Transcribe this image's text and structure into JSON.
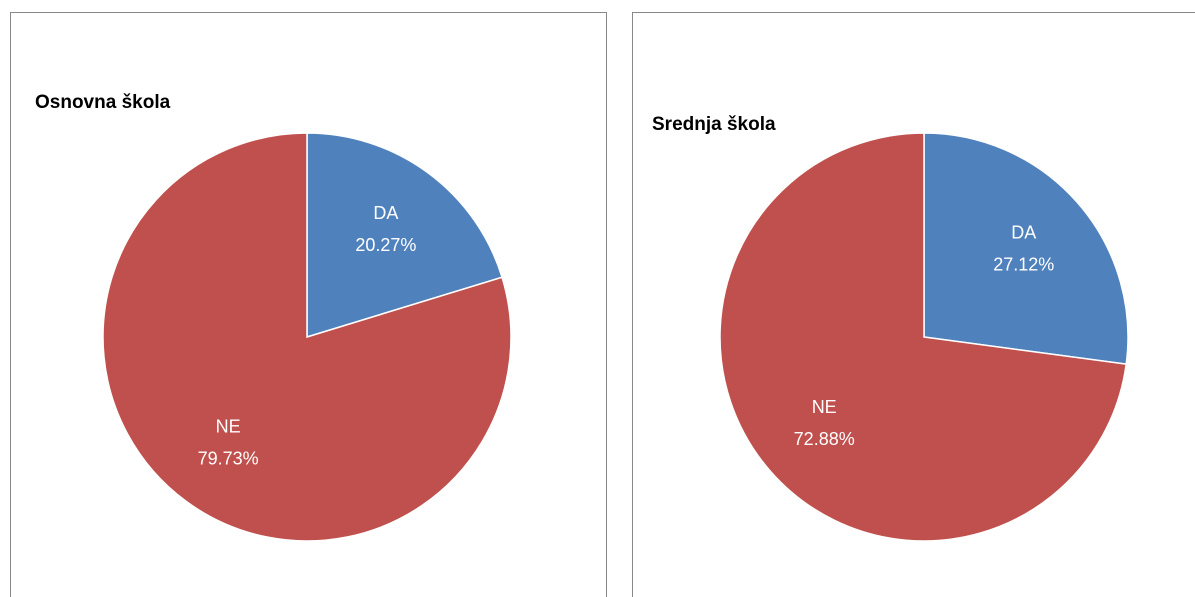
{
  "chart_data": [
    {
      "type": "pie",
      "title": "Osnovna škola",
      "categories": [
        "DA",
        "NE"
      ],
      "values": [
        20.27,
        79.73
      ],
      "value_labels": [
        "20.27%",
        "79.73%"
      ],
      "colors": [
        "#4f81bd",
        "#c0504d"
      ]
    },
    {
      "type": "pie",
      "title": "Srednja škola",
      "categories": [
        "DA",
        "NE"
      ],
      "values": [
        27.12,
        72.88
      ],
      "value_labels": [
        "27.12%",
        "72.88%"
      ],
      "colors": [
        "#4f81bd",
        "#c0504d"
      ]
    }
  ]
}
